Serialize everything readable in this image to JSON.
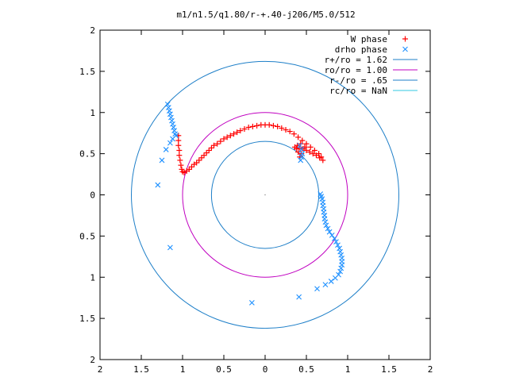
{
  "chart_data": {
    "type": "scatter",
    "title": "m1/n1.5/q1.80/r-+.40-j206/M5.0/512",
    "xlabel": "",
    "ylabel": "",
    "xlim": [
      -2,
      2
    ],
    "ylim": [
      -2,
      2
    ],
    "x_ticks": [
      "2",
      "1.5",
      "1",
      "0.5",
      "0",
      "0.5",
      "1",
      "1.5",
      "2"
    ],
    "y_ticks": [
      "2",
      "1.5",
      "1",
      "0.5",
      "0",
      "0.5",
      "1",
      "1.5",
      "2"
    ],
    "grid": false,
    "legend_position": "top-right",
    "legend": [
      {
        "label": "W phase",
        "marker": "+",
        "color": "#ff0000"
      },
      {
        "label": "drho phase",
        "marker": "x",
        "color": "#1e90ff"
      },
      {
        "label": "r+/ro = 1.62",
        "marker": "line",
        "color": "#1e7fc8"
      },
      {
        "label": "ro/ro = 1.00",
        "marker": "line",
        "color": "#c000c0"
      },
      {
        "label": "r-/ro = .65",
        "marker": "line",
        "color": "#1e7fc8"
      },
      {
        "label": "rc/ro = NaN",
        "marker": "line",
        "color": "#30c8e0"
      }
    ],
    "circles": [
      {
        "name": "r+/ro = 1.62",
        "radius": 1.62,
        "color": "#1e7fc8"
      },
      {
        "name": "ro/ro = 1.00",
        "radius": 1.0,
        "color": "#c000c0"
      },
      {
        "name": "r-/ro = .65",
        "radius": 0.65,
        "color": "#1e7fc8"
      }
    ],
    "series": [
      {
        "name": "W phase",
        "marker": "+",
        "color": "#ff0000",
        "points": [
          [
            -1.05,
            0.72
          ],
          [
            -1.05,
            0.66
          ],
          [
            -1.05,
            0.6
          ],
          [
            -1.04,
            0.54
          ],
          [
            -1.04,
            0.48
          ],
          [
            -1.03,
            0.42
          ],
          [
            -1.02,
            0.36
          ],
          [
            -1.01,
            0.31
          ],
          [
            -1.0,
            0.28
          ],
          [
            -0.98,
            0.27
          ],
          [
            -0.95,
            0.29
          ],
          [
            -0.92,
            0.31
          ],
          [
            -0.89,
            0.34
          ],
          [
            -0.86,
            0.37
          ],
          [
            -0.83,
            0.39
          ],
          [
            -0.8,
            0.42
          ],
          [
            -0.77,
            0.45
          ],
          [
            -0.74,
            0.48
          ],
          [
            -0.71,
            0.51
          ],
          [
            -0.68,
            0.54
          ],
          [
            -0.65,
            0.57
          ],
          [
            -0.62,
            0.6
          ],
          [
            -0.58,
            0.62
          ],
          [
            -0.54,
            0.65
          ],
          [
            -0.5,
            0.68
          ],
          [
            -0.46,
            0.7
          ],
          [
            -0.42,
            0.72
          ],
          [
            -0.38,
            0.74
          ],
          [
            -0.34,
            0.76
          ],
          [
            -0.3,
            0.78
          ],
          [
            -0.25,
            0.8
          ],
          [
            -0.2,
            0.82
          ],
          [
            -0.15,
            0.83
          ],
          [
            -0.1,
            0.84
          ],
          [
            -0.05,
            0.85
          ],
          [
            0.0,
            0.85
          ],
          [
            0.05,
            0.85
          ],
          [
            0.1,
            0.84
          ],
          [
            0.15,
            0.83
          ],
          [
            0.2,
            0.81
          ],
          [
            0.25,
            0.79
          ],
          [
            0.3,
            0.77
          ],
          [
            0.35,
            0.74
          ],
          [
            0.4,
            0.7
          ],
          [
            0.45,
            0.66
          ],
          [
            0.5,
            0.62
          ],
          [
            0.55,
            0.58
          ],
          [
            0.6,
            0.54
          ],
          [
            0.65,
            0.5
          ],
          [
            0.68,
            0.46
          ],
          [
            0.7,
            0.42
          ],
          [
            0.38,
            0.56
          ],
          [
            0.42,
            0.57
          ],
          [
            0.46,
            0.56
          ],
          [
            0.5,
            0.54
          ],
          [
            0.54,
            0.52
          ],
          [
            0.58,
            0.5
          ],
          [
            0.62,
            0.48
          ],
          [
            0.66,
            0.45
          ],
          [
            0.4,
            0.52
          ],
          [
            0.44,
            0.5
          ],
          [
            0.42,
            0.46
          ],
          [
            0.39,
            0.6
          ],
          [
            0.48,
            0.58
          ],
          [
            0.36,
            0.58
          ],
          [
            0.43,
            0.62
          ]
        ]
      },
      {
        "name": "drho phase",
        "marker": "x",
        "color": "#1e90ff",
        "points": [
          [
            -1.18,
            1.1
          ],
          [
            -1.17,
            1.06
          ],
          [
            -1.16,
            1.02
          ],
          [
            -1.15,
            0.98
          ],
          [
            -1.14,
            0.94
          ],
          [
            -1.13,
            0.9
          ],
          [
            -1.12,
            0.86
          ],
          [
            -1.11,
            0.82
          ],
          [
            -1.1,
            0.78
          ],
          [
            -1.09,
            0.74
          ],
          [
            -1.08,
            0.72
          ],
          [
            -1.12,
            0.68
          ],
          [
            -1.15,
            0.63
          ],
          [
            -1.2,
            0.55
          ],
          [
            -1.25,
            0.42
          ],
          [
            -1.3,
            0.12
          ],
          [
            -1.15,
            -0.64
          ],
          [
            -0.16,
            -1.31
          ],
          [
            0.41,
            -1.24
          ],
          [
            0.63,
            -1.14
          ],
          [
            0.73,
            -1.09
          ],
          [
            0.8,
            -1.05
          ],
          [
            0.85,
            -1.01
          ],
          [
            0.89,
            -0.97
          ],
          [
            0.91,
            -0.93
          ],
          [
            0.92,
            -0.89
          ],
          [
            0.93,
            -0.85
          ],
          [
            0.93,
            -0.81
          ],
          [
            0.93,
            -0.77
          ],
          [
            0.92,
            -0.73
          ],
          [
            0.91,
            -0.69
          ],
          [
            0.9,
            -0.65
          ],
          [
            0.88,
            -0.61
          ],
          [
            0.86,
            -0.57
          ],
          [
            0.84,
            -0.53
          ],
          [
            0.81,
            -0.49
          ],
          [
            0.78,
            -0.45
          ],
          [
            0.76,
            -0.41
          ],
          [
            0.74,
            -0.37
          ],
          [
            0.73,
            -0.33
          ],
          [
            0.72,
            -0.29
          ],
          [
            0.72,
            -0.25
          ],
          [
            0.71,
            -0.21
          ],
          [
            0.71,
            -0.17
          ],
          [
            0.7,
            -0.13
          ],
          [
            0.7,
            -0.09
          ],
          [
            0.69,
            -0.05
          ],
          [
            0.68,
            -0.02
          ],
          [
            0.67,
            0.01
          ],
          [
            0.42,
            0.6
          ],
          [
            0.44,
            0.55
          ],
          [
            0.45,
            0.5
          ],
          [
            0.44,
            0.46
          ],
          [
            0.43,
            0.42
          ]
        ]
      }
    ]
  }
}
